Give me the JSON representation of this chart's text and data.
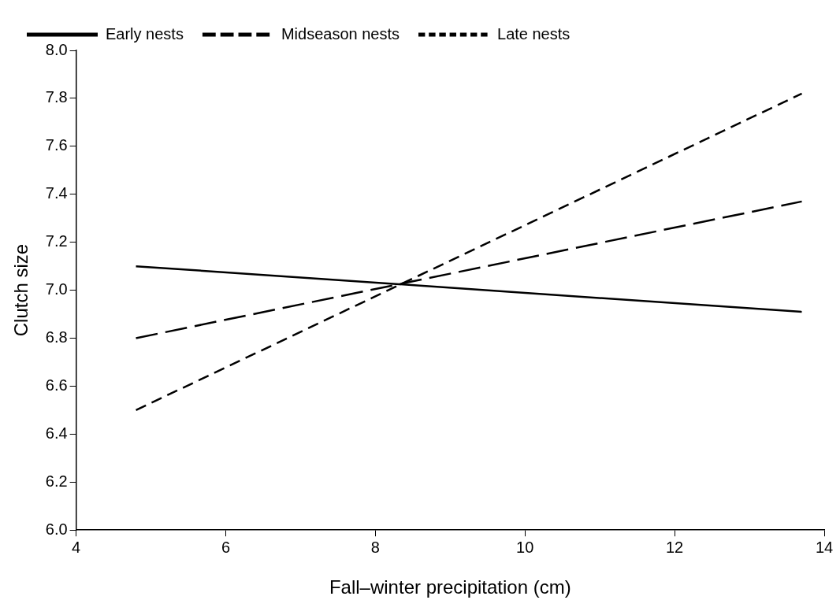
{
  "chart_data": {
    "type": "line",
    "xlabel": "Fall–winter precipitation (cm)",
    "ylabel": "Clutch size",
    "xlim": [
      4,
      14
    ],
    "xticks": [
      4,
      6,
      8,
      10,
      12,
      14
    ],
    "ylim": [
      6.0,
      8.0
    ],
    "yticks": [
      {
        "value": 6,
        "label": "6.0"
      },
      {
        "value": 6.2,
        "label": "6.2"
      },
      {
        "value": 6.4,
        "label": "6.4"
      },
      {
        "value": 6.6,
        "label": "6.6"
      },
      {
        "value": 6.8,
        "label": "6.8"
      },
      {
        "value": 7,
        "label": "7.0"
      },
      {
        "value": 7.2,
        "label": "7.2"
      },
      {
        "value": 7.4,
        "label": "7.4"
      },
      {
        "value": 7.6,
        "label": "7.6"
      },
      {
        "value": 7.8,
        "label": "7.8"
      },
      {
        "value": 8,
        "label": "8.0"
      }
    ],
    "x": [
      4.8,
      13.7
    ],
    "series": [
      {
        "name": "Early nests",
        "color": "#000000",
        "line_style": "solid",
        "values": [
          7.1,
          6.91
        ]
      },
      {
        "name": "Midseason nests",
        "color": "#000000",
        "line_style": "dashed",
        "values": [
          6.8,
          7.37
        ]
      },
      {
        "name": "Late nests",
        "color": "#000000",
        "line_style": "dotted",
        "values": [
          6.5,
          7.82
        ]
      }
    ],
    "grid": false,
    "legend": "top left",
    "marker": "none"
  }
}
